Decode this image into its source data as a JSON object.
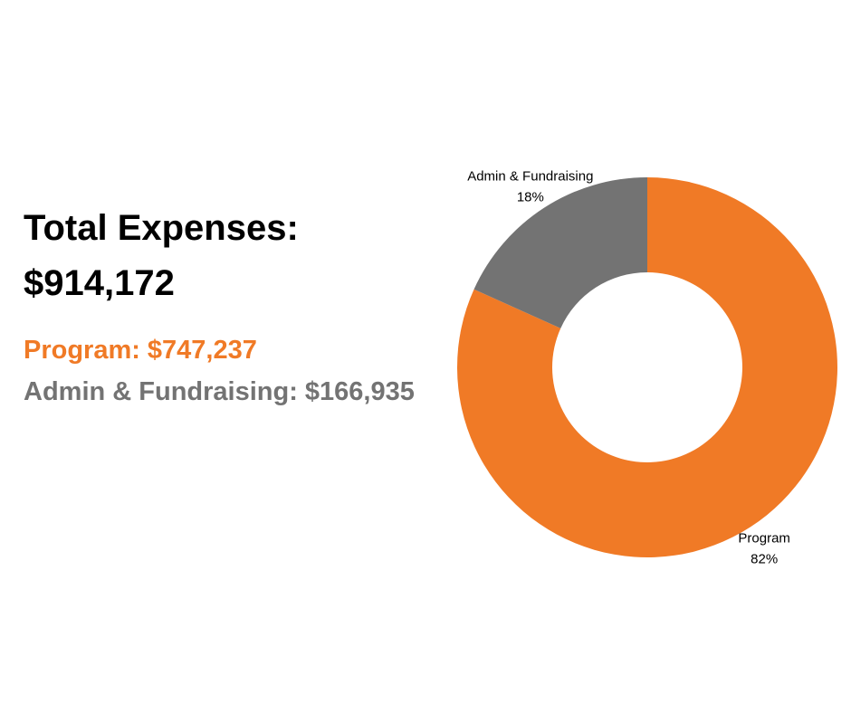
{
  "summary": {
    "total_label": "Total Expenses:",
    "total_value": "$914,172",
    "rows": [
      {
        "label": "Program:",
        "value": "$747,237",
        "color": "#F07A26"
      },
      {
        "label": "Admin & Fundraising:",
        "value": "$166,935",
        "color": "#737373"
      }
    ]
  },
  "chart_data": {
    "type": "pie",
    "style": "donut",
    "title": "",
    "categories": [
      "Program",
      "Admin & Fundraising"
    ],
    "values": [
      747237,
      166935
    ],
    "percent_labels": [
      "82%",
      "18%"
    ],
    "colors": [
      "#F07A26",
      "#737373"
    ],
    "legend": "none"
  }
}
